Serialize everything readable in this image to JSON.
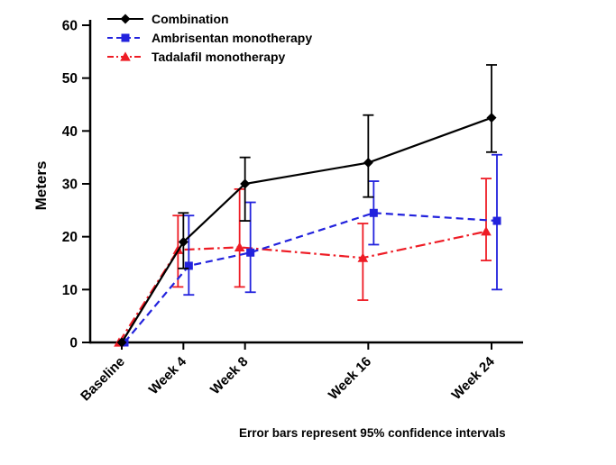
{
  "chart_data": {
    "type": "line",
    "title": "",
    "xlabel": "",
    "ylabel": "Meters",
    "caption": "Error bars represent 95% confidence intervals",
    "ylim": [
      0,
      60
    ],
    "yticks": [
      0,
      10,
      20,
      30,
      40,
      50,
      60
    ],
    "categories": [
      "Baseline",
      "Week 4",
      "Week 8",
      "Week 16",
      "Week 24"
    ],
    "x_weeks": [
      0,
      4,
      8,
      16,
      24
    ],
    "legend_position": "top-left",
    "grid": false,
    "error_bars": "95% confidence intervals",
    "series": [
      {
        "name": "Combination",
        "color": "#000000",
        "marker": "diamond",
        "line_style": "solid",
        "values": [
          0,
          19,
          30,
          34,
          42.5
        ],
        "ci_low": [
          0,
          14,
          23,
          27.5,
          36
        ],
        "ci_high": [
          0,
          24.5,
          35,
          43,
          52.5
        ]
      },
      {
        "name": "Ambrisentan monotherapy",
        "color": "#2222dd",
        "marker": "square",
        "line_style": "dashed",
        "values": [
          0,
          14.5,
          17,
          24.5,
          23
        ],
        "ci_low": [
          0,
          9,
          9.5,
          18.5,
          10
        ],
        "ci_high": [
          0,
          24,
          26.5,
          30.5,
          35.5
        ]
      },
      {
        "name": "Tadalafil monotherapy",
        "color": "#ee1c25",
        "marker": "triangle",
        "line_style": "dash-dot",
        "values": [
          0,
          17.5,
          18,
          16,
          21
        ],
        "ci_low": [
          0,
          10.5,
          10.5,
          8,
          15.5
        ],
        "ci_high": [
          0,
          24,
          29,
          22.5,
          31
        ]
      }
    ]
  }
}
